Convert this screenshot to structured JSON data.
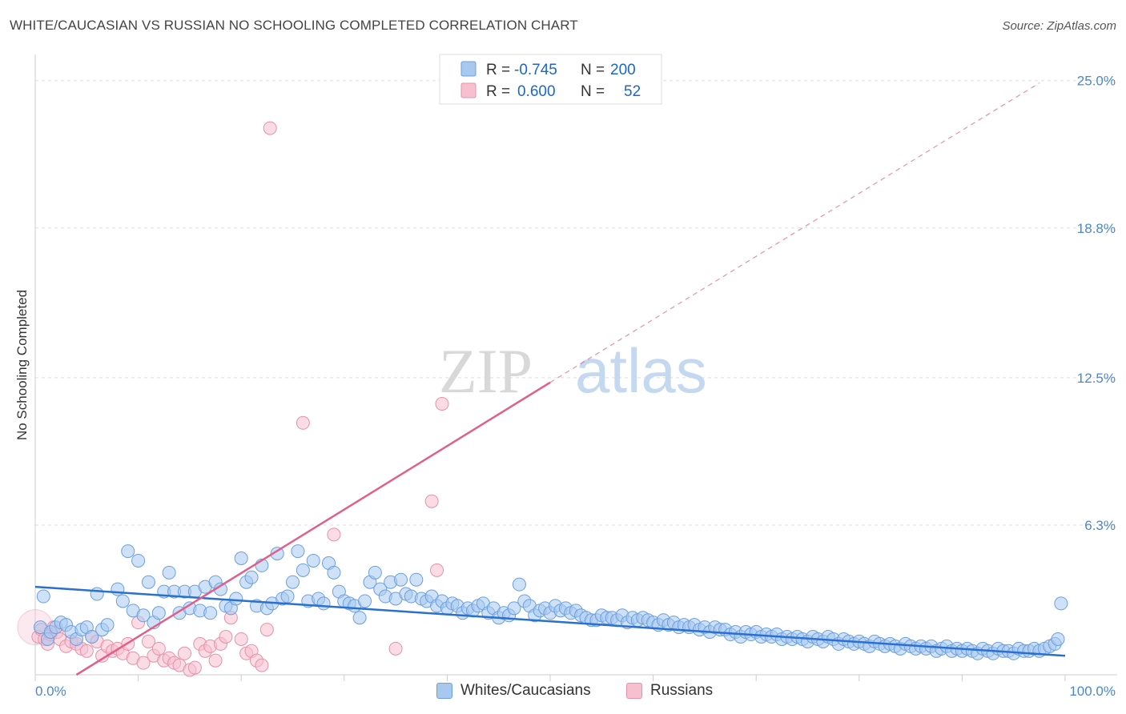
{
  "title": "WHITE/CAUCASIAN VS RUSSIAN NO SCHOOLING COMPLETED CORRELATION CHART",
  "source": "Source: ZipAtlas.com",
  "watermark": {
    "zip": "ZIP",
    "atlas": "atlas"
  },
  "colors": {
    "blue_fill": "#a8c8f0",
    "blue_stroke": "#6a9fe0",
    "blue_line": "#2a70d0",
    "pink_fill": "#f7c0d0",
    "pink_stroke": "#e890ac",
    "pink_line": "#e0608a",
    "tick_text": "#4a86d8",
    "grid": "#dddddd"
  },
  "legend_top": {
    "rows": [
      {
        "r_label": "R =",
        "r_value": "-0.745",
        "n_label": "N =",
        "n_value": "200",
        "series": "Whites/Caucasians"
      },
      {
        "r_label": "R =",
        "r_value": "0.600",
        "n_label": "N =",
        "n_value": "52",
        "series": "Russians"
      }
    ]
  },
  "chart_data": {
    "type": "scatter",
    "title": "WHITE/CAUCASIAN VS RUSSIAN NO SCHOOLING COMPLETED CORRELATION CHART",
    "xlabel": "",
    "ylabel": "No Schooling Completed",
    "xlim": [
      0,
      100
    ],
    "ylim": [
      0,
      26
    ],
    "x_tick_labels": [
      "0.0%",
      "100.0%"
    ],
    "y_ticks": [
      6.3,
      12.5,
      18.8,
      25.0
    ],
    "y_tick_labels": [
      "6.3%",
      "12.5%",
      "18.8%",
      "25.0%"
    ],
    "grid": true,
    "legend_position": "bottom-center",
    "series": [
      {
        "name": "Whites/Caucasians",
        "r": -0.745,
        "n": 200,
        "trend": {
          "x": [
            0,
            100
          ],
          "y": [
            3.7,
            0.8
          ],
          "style": "solid"
        },
        "points": [
          [
            0.5,
            2.0
          ],
          [
            0.8,
            3.3
          ],
          [
            1.2,
            1.5
          ],
          [
            1.5,
            1.8
          ],
          [
            2.0,
            2.0
          ],
          [
            2.5,
            2.2
          ],
          [
            3.0,
            2.1
          ],
          [
            3.5,
            1.8
          ],
          [
            4.0,
            1.5
          ],
          [
            4.5,
            1.9
          ],
          [
            5.0,
            2.0
          ],
          [
            5.5,
            1.6
          ],
          [
            6.0,
            3.4
          ],
          [
            6.5,
            1.9
          ],
          [
            7.0,
            2.1
          ],
          [
            8.0,
            3.6
          ],
          [
            8.5,
            3.1
          ],
          [
            9.0,
            5.2
          ],
          [
            9.5,
            2.7
          ],
          [
            10.0,
            4.8
          ],
          [
            10.5,
            2.5
          ],
          [
            11.0,
            3.9
          ],
          [
            11.5,
            2.2
          ],
          [
            12.0,
            2.6
          ],
          [
            12.5,
            3.5
          ],
          [
            13.0,
            4.3
          ],
          [
            13.5,
            3.5
          ],
          [
            14.0,
            2.6
          ],
          [
            14.5,
            3.5
          ],
          [
            15.0,
            2.8
          ],
          [
            15.5,
            3.5
          ],
          [
            16.0,
            2.7
          ],
          [
            16.5,
            3.7
          ],
          [
            17.0,
            2.6
          ],
          [
            17.5,
            3.9
          ],
          [
            18.0,
            3.6
          ],
          [
            18.5,
            2.9
          ],
          [
            19.0,
            2.8
          ],
          [
            19.5,
            3.2
          ],
          [
            20.0,
            4.9
          ],
          [
            20.5,
            3.9
          ],
          [
            21.0,
            4.1
          ],
          [
            21.5,
            2.9
          ],
          [
            22.0,
            4.6
          ],
          [
            22.5,
            2.8
          ],
          [
            23.0,
            3.0
          ],
          [
            23.5,
            5.1
          ],
          [
            24.0,
            3.2
          ],
          [
            24.5,
            3.3
          ],
          [
            25.0,
            3.9
          ],
          [
            25.5,
            5.2
          ],
          [
            26.0,
            4.4
          ],
          [
            26.5,
            3.1
          ],
          [
            27.0,
            4.8
          ],
          [
            27.5,
            3.2
          ],
          [
            28.0,
            3.0
          ],
          [
            28.5,
            4.7
          ],
          [
            29.0,
            4.3
          ],
          [
            29.5,
            3.5
          ],
          [
            30.0,
            3.1
          ],
          [
            30.5,
            3.0
          ],
          [
            31.0,
            2.9
          ],
          [
            31.5,
            2.4
          ],
          [
            32.0,
            3.1
          ],
          [
            32.5,
            3.9
          ],
          [
            33.0,
            4.3
          ],
          [
            33.5,
            3.6
          ],
          [
            34.0,
            3.3
          ],
          [
            34.5,
            3.9
          ],
          [
            35.0,
            3.2
          ],
          [
            35.5,
            4.0
          ],
          [
            36.0,
            3.4
          ],
          [
            36.5,
            3.3
          ],
          [
            37.0,
            4.0
          ],
          [
            37.5,
            3.2
          ],
          [
            38.0,
            3.1
          ],
          [
            38.5,
            3.3
          ],
          [
            39.0,
            2.9
          ],
          [
            39.5,
            3.1
          ],
          [
            40.0,
            2.8
          ],
          [
            40.5,
            3.0
          ],
          [
            41.0,
            2.9
          ],
          [
            41.5,
            2.6
          ],
          [
            42.0,
            2.8
          ],
          [
            42.5,
            2.7
          ],
          [
            43.0,
            2.9
          ],
          [
            43.5,
            3.0
          ],
          [
            44.0,
            2.6
          ],
          [
            44.5,
            2.8
          ],
          [
            45.0,
            2.4
          ],
          [
            45.5,
            2.6
          ],
          [
            46.0,
            2.5
          ],
          [
            46.5,
            2.8
          ],
          [
            47.0,
            3.8
          ],
          [
            47.5,
            3.1
          ],
          [
            48.0,
            2.9
          ],
          [
            48.5,
            2.5
          ],
          [
            49.0,
            2.7
          ],
          [
            49.5,
            2.8
          ],
          [
            50.0,
            2.6
          ],
          [
            50.5,
            2.9
          ],
          [
            51.0,
            2.7
          ],
          [
            51.5,
            2.8
          ],
          [
            52.0,
            2.6
          ],
          [
            52.5,
            2.7
          ],
          [
            53.0,
            2.5
          ],
          [
            53.5,
            2.4
          ],
          [
            54.0,
            2.3
          ],
          [
            54.5,
            2.3
          ],
          [
            55.0,
            2.5
          ],
          [
            55.5,
            2.4
          ],
          [
            56.0,
            2.4
          ],
          [
            56.5,
            2.3
          ],
          [
            57.0,
            2.5
          ],
          [
            57.5,
            2.2
          ],
          [
            58.0,
            2.4
          ],
          [
            58.5,
            2.3
          ],
          [
            59.0,
            2.4
          ],
          [
            59.5,
            2.3
          ],
          [
            60.0,
            2.2
          ],
          [
            60.5,
            2.1
          ],
          [
            61.0,
            2.3
          ],
          [
            61.5,
            2.1
          ],
          [
            62.0,
            2.2
          ],
          [
            62.5,
            2.0
          ],
          [
            63.0,
            2.1
          ],
          [
            63.5,
            2.0
          ],
          [
            64.0,
            2.1
          ],
          [
            64.5,
            1.9
          ],
          [
            65.0,
            2.0
          ],
          [
            65.5,
            1.8
          ],
          [
            66.0,
            2.0
          ],
          [
            66.5,
            1.9
          ],
          [
            67.0,
            1.9
          ],
          [
            67.5,
            1.7
          ],
          [
            68.0,
            1.8
          ],
          [
            68.5,
            1.6
          ],
          [
            69.0,
            1.8
          ],
          [
            69.5,
            1.7
          ],
          [
            70.0,
            1.8
          ],
          [
            70.5,
            1.6
          ],
          [
            71.0,
            1.7
          ],
          [
            71.5,
            1.6
          ],
          [
            72.0,
            1.7
          ],
          [
            72.5,
            1.5
          ],
          [
            73.0,
            1.6
          ],
          [
            73.5,
            1.5
          ],
          [
            74.0,
            1.6
          ],
          [
            74.5,
            1.5
          ],
          [
            75.0,
            1.4
          ],
          [
            75.5,
            1.6
          ],
          [
            76.0,
            1.5
          ],
          [
            76.5,
            1.4
          ],
          [
            77.0,
            1.6
          ],
          [
            77.5,
            1.5
          ],
          [
            78.0,
            1.3
          ],
          [
            78.5,
            1.5
          ],
          [
            79.0,
            1.4
          ],
          [
            79.5,
            1.3
          ],
          [
            80.0,
            1.4
          ],
          [
            80.5,
            1.3
          ],
          [
            81.0,
            1.2
          ],
          [
            81.5,
            1.4
          ],
          [
            82.0,
            1.3
          ],
          [
            82.5,
            1.2
          ],
          [
            83.0,
            1.3
          ],
          [
            83.5,
            1.2
          ],
          [
            84.0,
            1.1
          ],
          [
            84.5,
            1.3
          ],
          [
            85.0,
            1.2
          ],
          [
            85.5,
            1.1
          ],
          [
            86.0,
            1.2
          ],
          [
            86.5,
            1.1
          ],
          [
            87.0,
            1.2
          ],
          [
            87.5,
            1.0
          ],
          [
            88.0,
            1.1
          ],
          [
            88.5,
            1.2
          ],
          [
            89.0,
            1.0
          ],
          [
            89.5,
            1.1
          ],
          [
            90.0,
            1.0
          ],
          [
            90.5,
            1.1
          ],
          [
            91.0,
            1.0
          ],
          [
            91.5,
            0.9
          ],
          [
            92.0,
            1.1
          ],
          [
            92.5,
            1.0
          ],
          [
            93.0,
            0.9
          ],
          [
            93.5,
            1.1
          ],
          [
            94.0,
            1.0
          ],
          [
            94.5,
            1.0
          ],
          [
            95.0,
            0.9
          ],
          [
            95.5,
            1.1
          ],
          [
            96.0,
            1.0
          ],
          [
            96.5,
            1.0
          ],
          [
            97.0,
            1.1
          ],
          [
            97.5,
            1.0
          ],
          [
            98.0,
            1.1
          ],
          [
            98.5,
            1.2
          ],
          [
            99.0,
            1.3
          ],
          [
            99.3,
            1.5
          ],
          [
            99.6,
            3.0
          ]
        ]
      },
      {
        "name": "Russians",
        "r": 0.6,
        "n": 52,
        "trend": {
          "x": [
            4,
            50,
            97.5
          ],
          "y": [
            0,
            12.3,
            24.9
          ],
          "solid_until_x": 50,
          "style": "solid-then-dashed"
        },
        "points": [
          [
            0.3,
            1.6
          ],
          [
            0.6,
            1.9
          ],
          [
            0.9,
            1.5
          ],
          [
            1.2,
            1.3
          ],
          [
            1.5,
            1.7
          ],
          [
            1.8,
            2.0
          ],
          [
            2.1,
            1.8
          ],
          [
            2.4,
            1.5
          ],
          [
            3.0,
            1.2
          ],
          [
            3.5,
            1.4
          ],
          [
            4.0,
            1.3
          ],
          [
            4.5,
            1.1
          ],
          [
            5.0,
            1.0
          ],
          [
            5.5,
            1.6
          ],
          [
            6.0,
            1.4
          ],
          [
            6.5,
            0.8
          ],
          [
            7.0,
            1.2
          ],
          [
            7.5,
            1.0
          ],
          [
            8.0,
            1.1
          ],
          [
            8.5,
            0.9
          ],
          [
            9.0,
            1.3
          ],
          [
            9.5,
            0.7
          ],
          [
            10.0,
            2.2
          ],
          [
            10.5,
            0.5
          ],
          [
            11.0,
            1.4
          ],
          [
            11.5,
            0.8
          ],
          [
            12.0,
            1.1
          ],
          [
            12.5,
            0.6
          ],
          [
            13.0,
            0.7
          ],
          [
            13.5,
            0.5
          ],
          [
            14.0,
            0.4
          ],
          [
            14.5,
            0.9
          ],
          [
            15.0,
            0.2
          ],
          [
            15.5,
            0.3
          ],
          [
            16.0,
            1.3
          ],
          [
            16.5,
            1.0
          ],
          [
            17.0,
            1.2
          ],
          [
            17.5,
            0.6
          ],
          [
            18.0,
            1.3
          ],
          [
            18.5,
            1.6
          ],
          [
            19.0,
            2.4
          ],
          [
            20.0,
            1.5
          ],
          [
            20.5,
            0.9
          ],
          [
            21.0,
            1.0
          ],
          [
            21.5,
            0.6
          ],
          [
            22.0,
            0.4
          ],
          [
            22.5,
            1.9
          ],
          [
            22.8,
            23.0
          ],
          [
            26.0,
            10.6
          ],
          [
            35.0,
            1.1
          ],
          [
            38.5,
            7.3
          ],
          [
            39.0,
            4.4
          ]
        ]
      }
    ],
    "extra_russian_points": [
      [
        29.0,
        5.9
      ],
      [
        39.5,
        11.4
      ]
    ]
  },
  "bottom_legend": [
    {
      "label": "Whites/Caucasians"
    },
    {
      "label": "Russians"
    }
  ]
}
